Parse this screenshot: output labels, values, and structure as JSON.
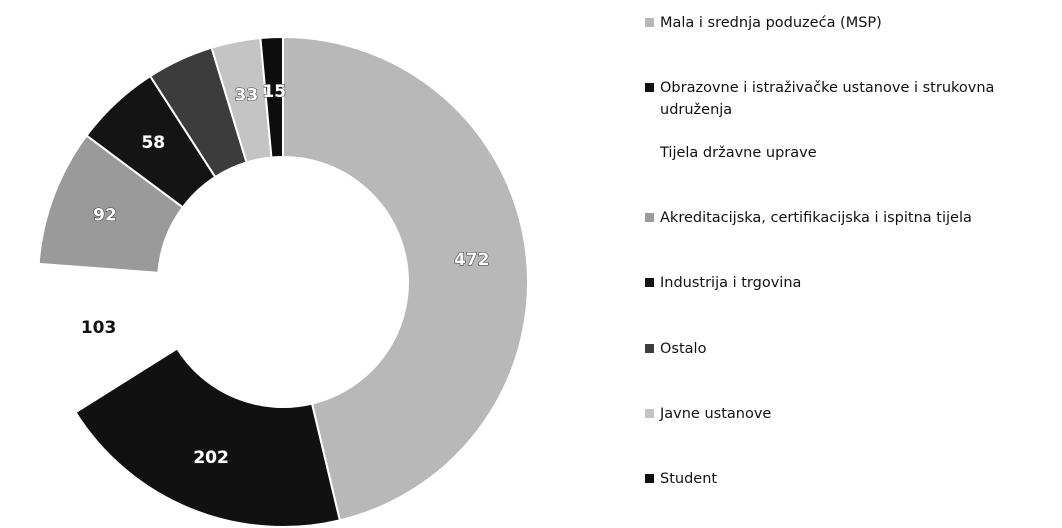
{
  "chart_data": {
    "type": "donut",
    "categories": [
      "Mala i srednja poduzeća (MSP)",
      "Obrazovne i istraživačke ustanove i strukovna udruženja",
      "Tijela državne uprave",
      "Akreditacijska, certifikacijska i ispitna tijela",
      "Industrija i trgovina",
      "Ostalo",
      "Javne ustanove",
      "Student"
    ],
    "values": [
      472,
      202,
      103,
      92,
      58,
      45,
      33,
      15
    ],
    "value_labels": [
      "472",
      "202",
      "103",
      "92",
      "58",
      null,
      "33",
      "15"
    ],
    "colors": [
      "#b8b8b8",
      "#111111",
      "#ffffff",
      "#9a9a9a",
      "#141414",
      "#3c3c3c",
      "#c4c4c4",
      "#0d0d0d"
    ]
  }
}
